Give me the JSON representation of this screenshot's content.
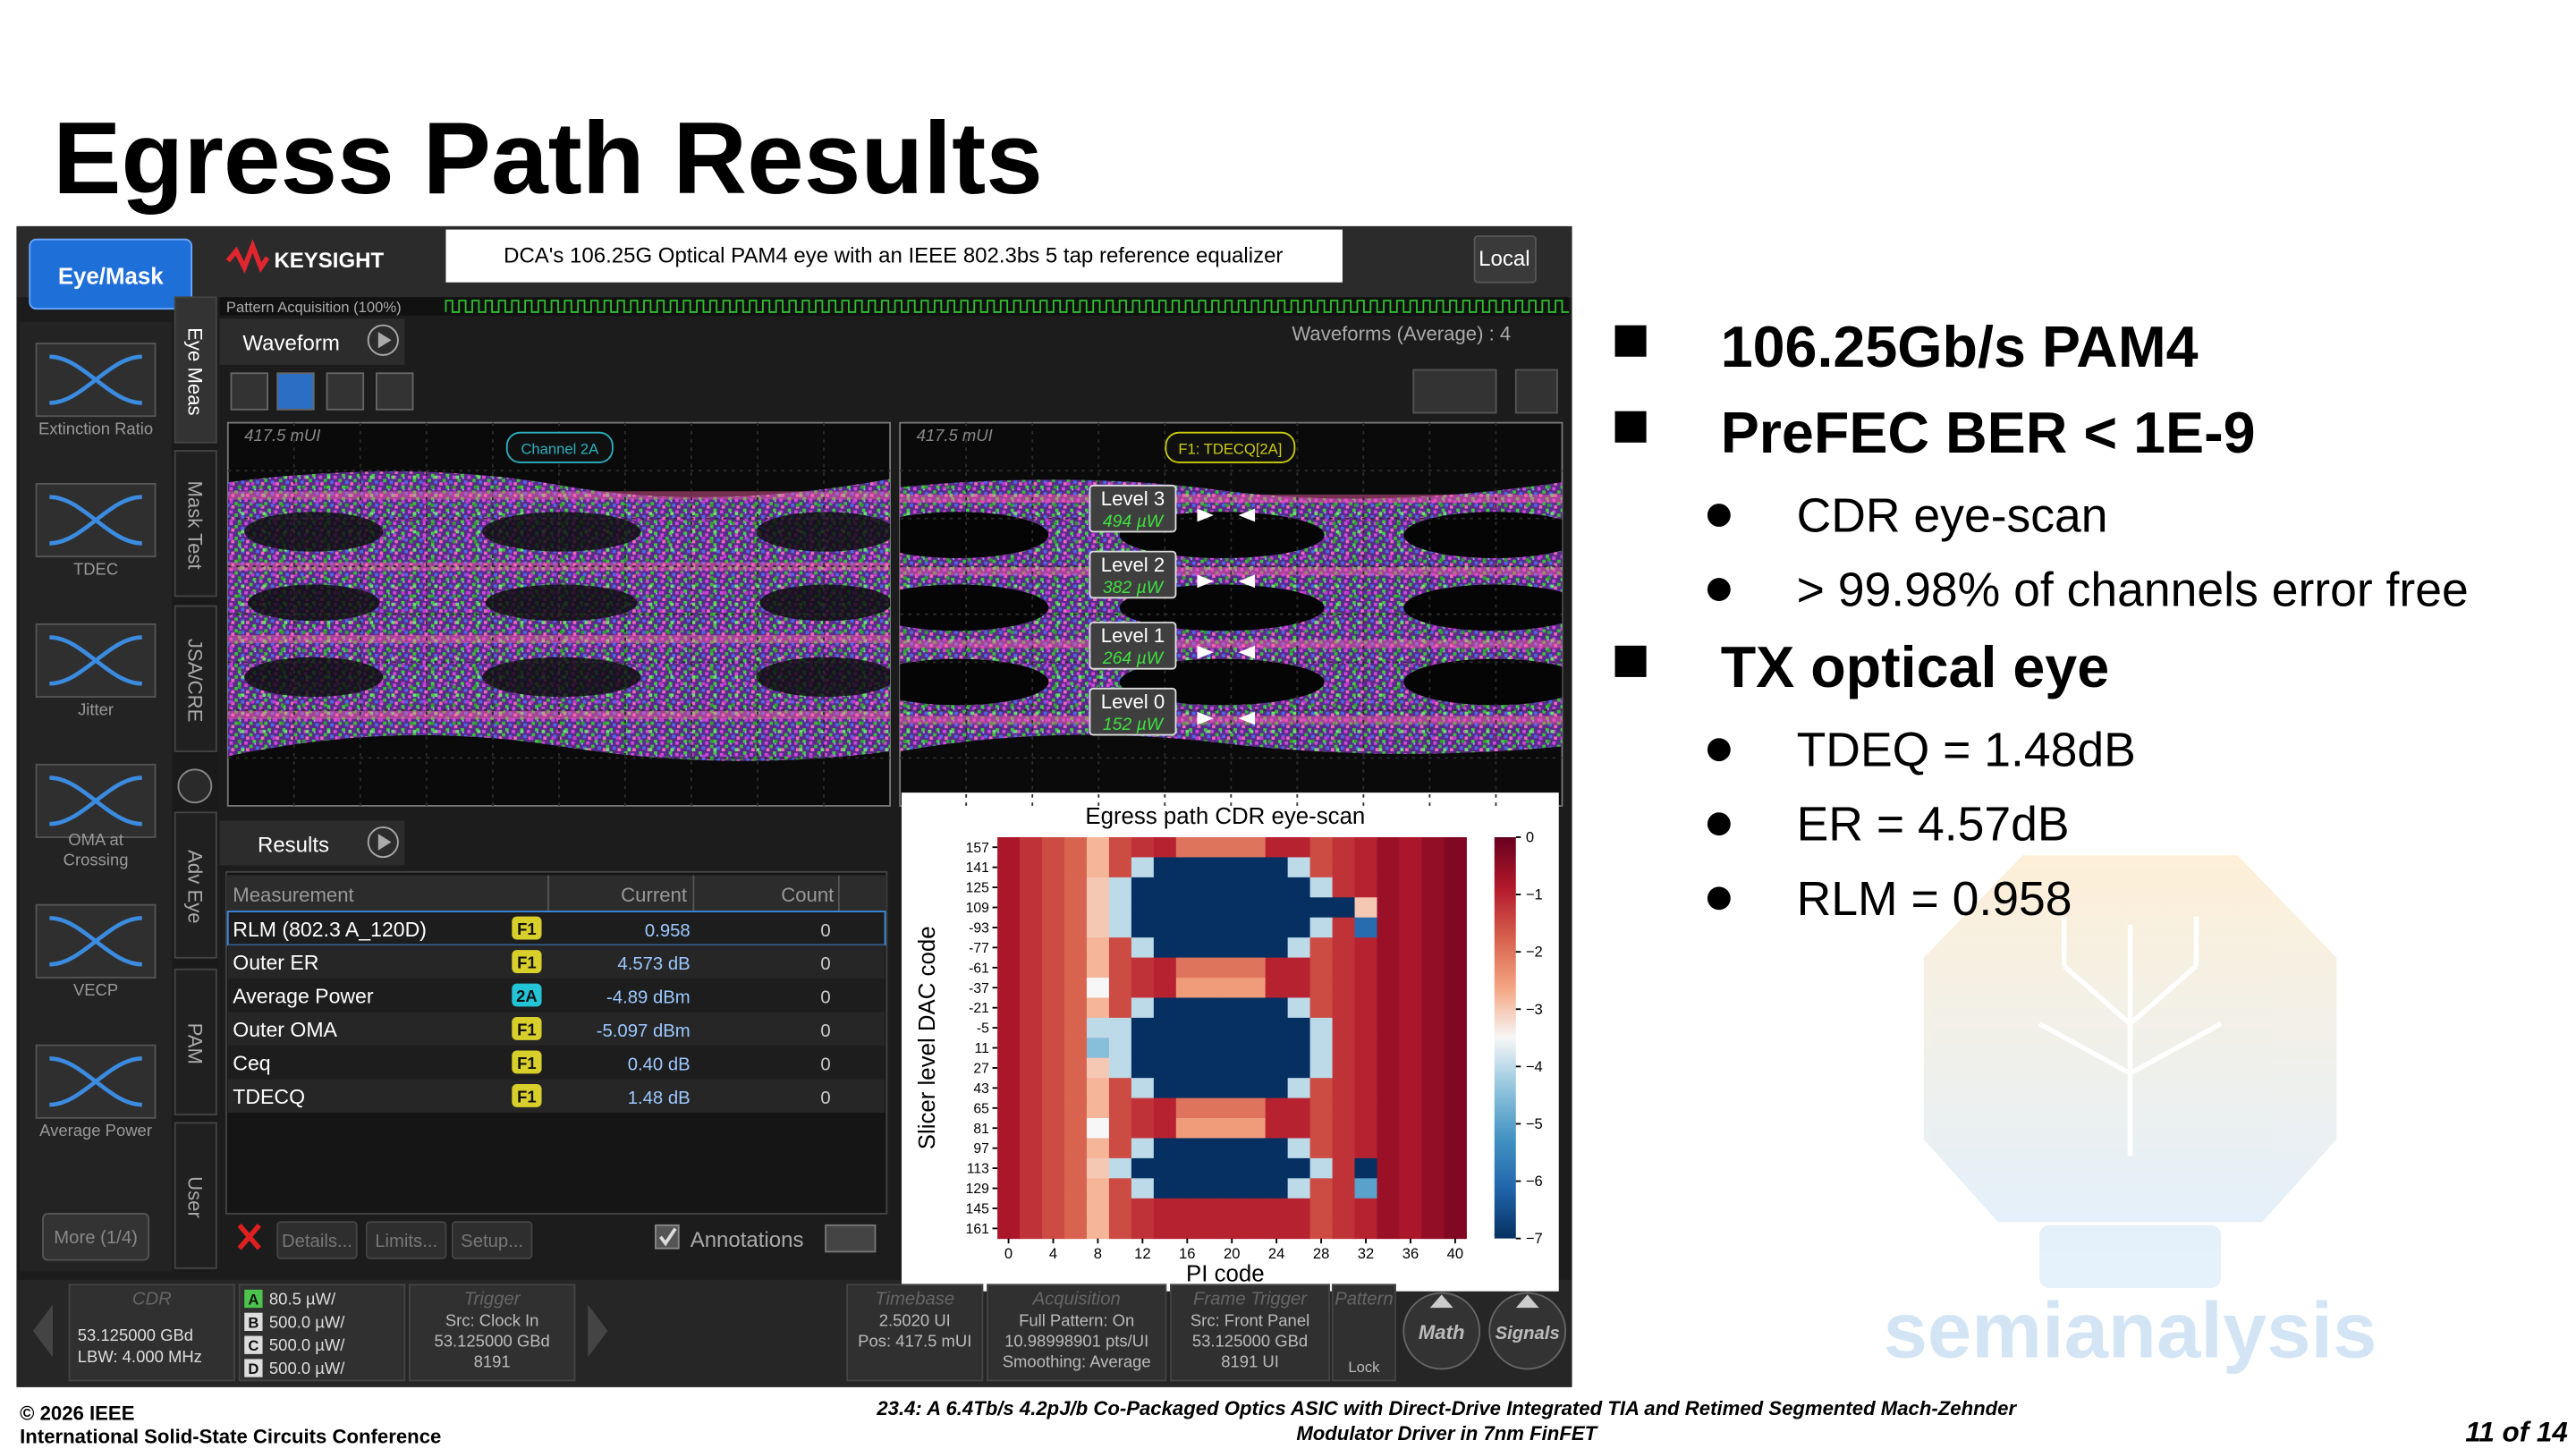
{
  "slide": {
    "title": "Egress Path Results",
    "bullets": [
      {
        "text": "106.25Gb/s PAM4"
      },
      {
        "text": "PreFEC BER < 1E-9",
        "sub": [
          "CDR eye-scan",
          "> 99.98% of channels error free"
        ]
      },
      {
        "text": "TX optical eye",
        "sub": [
          "TDEQ = 1.48dB",
          "ER = 4.57dB",
          "RLM = 0.958"
        ]
      }
    ],
    "footer": {
      "copyright": "© 2026 IEEE",
      "conference": "International Solid-State Circuits Conference",
      "paper": [
        "23.4: A 6.4Tb/s 4.2pJ/b Co-Packaged Optics ASIC with Direct-Drive Integrated TIA and Retimed Segmented Mach-Zehnder",
        "Modulator Driver in 7nm FinFET"
      ],
      "page": "11 of 14"
    },
    "watermark": "semianalysis"
  },
  "scope": {
    "mode_button": "Eye/Mask",
    "brand": "KEYSIGHT",
    "caption": "DCA's 106.25G Optical PAM4 eye with an IEEE 802.3bs 5 tap reference equalizer",
    "local": "Local",
    "pattern_acquisition": "Pattern Acquisition  (100%)",
    "waveform_tab": "Waveform",
    "waveform_status": "Waveforms (Average) : 4",
    "tools": [
      [
        "Extinction Ratio"
      ],
      [
        "TDEC"
      ],
      [
        "Jitter"
      ],
      [
        "OMA at",
        "Crossing"
      ],
      [
        "VECP"
      ],
      [
        "Average Power"
      ]
    ],
    "more": "More (1/4)",
    "tabs": [
      "Eye Meas",
      "Mask Test",
      "JSA/CRE",
      "Adv Eye",
      "PAM",
      "User"
    ],
    "eye_left": {
      "position": "417.5 mUI",
      "label": "Channel 2A"
    },
    "eye_right": {
      "position": "417.5 mUI",
      "label": "F1: TDECQ[2A]",
      "levels": [
        {
          "name": "Level 3",
          "power": "494 µW"
        },
        {
          "name": "Level 2",
          "power": "382 µW"
        },
        {
          "name": "Level 1",
          "power": "264 µW"
        },
        {
          "name": "Level 0",
          "power": "152 µW"
        }
      ]
    },
    "results": {
      "tab": "Results",
      "columns": [
        "Measurement",
        "Current",
        "Count"
      ],
      "rows": [
        {
          "name": "RLM (802.3 A_120D)",
          "source": "F1",
          "source_color": "#d9cf2a",
          "current": "0.958",
          "count": "0"
        },
        {
          "name": "Outer ER",
          "source": "F1",
          "source_color": "#d9cf2a",
          "current": "4.573 dB",
          "count": "0"
        },
        {
          "name": "Average Power",
          "source": "2A",
          "source_color": "#22c4d6",
          "current": "-4.89 dBm",
          "count": "0"
        },
        {
          "name": "Outer OMA",
          "source": "F1",
          "source_color": "#d9cf2a",
          "current": "-5.097 dBm",
          "count": "0"
        },
        {
          "name": "Ceq",
          "source": "F1",
          "source_color": "#d9cf2a",
          "current": "0.40 dB",
          "count": "0"
        },
        {
          "name": "TDECQ",
          "source": "F1",
          "source_color": "#d9cf2a",
          "current": "1.48 dB",
          "count": "0"
        }
      ]
    },
    "buttons": [
      "Details...",
      "Limits...",
      "Setup..."
    ],
    "annotations": "Annotations",
    "status": {
      "cdr": {
        "title": "CDR",
        "lines": [
          "53.125000 GBd",
          "LBW: 4.000 MHz"
        ]
      },
      "channels": [
        {
          "id": "A",
          "scale": "80.5 µW/",
          "color": "#4cc44c"
        },
        {
          "id": "B",
          "scale": "500.0 µW/",
          "color": "#dddddd"
        },
        {
          "id": "C",
          "scale": "500.0 µW/",
          "color": "#dddddd"
        },
        {
          "id": "D",
          "scale": "500.0 µW/",
          "color": "#dddddd"
        }
      ],
      "trigger": {
        "title": "Trigger",
        "lines": [
          "Src: Clock In",
          "53.125000 GBd",
          "8191"
        ]
      },
      "timebase": {
        "title": "Timebase",
        "lines": [
          "2.5020 UI",
          "Pos: 417.5 mUI"
        ]
      },
      "acquisition": {
        "title": "Acquisition",
        "lines": [
          "Full Pattern: On",
          "10.98998901 pts/UI",
          "Smoothing: Average"
        ]
      },
      "frame_trigger": {
        "title": "Frame Trigger",
        "lines": [
          "Src: Front Panel",
          "53.125000 GBd",
          "8191 UI"
        ]
      },
      "pattern": {
        "title": "Pattern",
        "lines": [
          "Lock"
        ]
      },
      "math": "Math",
      "signals": "Signals"
    }
  },
  "chart_data": {
    "type": "heatmap",
    "title": "Egress path CDR eye-scan",
    "x_label": "PI code",
    "y_label": "Slicer level DAC code",
    "x": [
      0,
      2,
      4,
      6,
      8,
      10,
      12,
      14,
      16,
      18,
      20,
      22,
      24,
      26,
      28,
      30,
      32,
      34,
      36,
      38,
      40
    ],
    "xlim": [
      -1,
      41
    ],
    "xticks": [
      0,
      4,
      8,
      12,
      16,
      20,
      24,
      28,
      32,
      36,
      40
    ],
    "categories": [
      "157",
      "141",
      "125",
      "109",
      "-93",
      "-77",
      "-61",
      "-37",
      "-21",
      "-5",
      "11",
      "27",
      "43",
      "65",
      "81",
      "97",
      "113",
      "129",
      "145",
      "161"
    ],
    "values": [
      [
        -0.8,
        -1.2,
        -1.5,
        -1.8,
        -2.8,
        -1.5,
        -1.2,
        -1,
        -2,
        -2,
        -2,
        -2,
        -1,
        -1,
        -1.5,
        -1.2,
        -1,
        -0.6,
        -0.8,
        -0.5,
        -0.3
      ],
      [
        -0.8,
        -1.2,
        -1.5,
        -1.8,
        -2.8,
        -1.5,
        -4,
        -7,
        -7,
        -7,
        -7,
        -7,
        -7,
        -4,
        -1.5,
        -1.2,
        -1,
        -0.6,
        -0.8,
        -0.5,
        -0.3
      ],
      [
        -0.8,
        -1.2,
        -1.5,
        -1.8,
        -3,
        -4,
        -7,
        -7,
        -7,
        -7,
        -7,
        -7,
        -7,
        -7,
        -4,
        -1.2,
        -1,
        -0.6,
        -0.8,
        -0.5,
        -0.3
      ],
      [
        -0.8,
        -1.2,
        -1.5,
        -1.8,
        -3,
        -4,
        -7,
        -7,
        -7,
        -7,
        -7,
        -7,
        -7,
        -7,
        -7,
        -7,
        -3,
        -0.6,
        -0.8,
        -0.5,
        -0.3
      ],
      [
        -0.8,
        -1.2,
        -1.5,
        -1.8,
        -3,
        -4,
        -7,
        -7,
        -7,
        -7,
        -7,
        -7,
        -7,
        -7,
        -4,
        -1.2,
        -6,
        -0.6,
        -0.8,
        -0.5,
        -0.3
      ],
      [
        -0.8,
        -1.2,
        -1.5,
        -1.8,
        -2.8,
        -1.5,
        -4,
        -7,
        -7,
        -7,
        -7,
        -7,
        -7,
        -4,
        -1.5,
        -1.2,
        -1,
        -0.6,
        -0.8,
        -0.5,
        -0.3
      ],
      [
        -0.8,
        -1.2,
        -1.5,
        -1.8,
        -2.8,
        -1.5,
        -1.2,
        -1,
        -2,
        -2,
        -2,
        -2,
        -1,
        -1,
        -1.5,
        -1.2,
        -1,
        -0.6,
        -0.8,
        -0.5,
        -0.3
      ],
      [
        -0.8,
        -1.2,
        -1.5,
        -1.8,
        -3.5,
        -1.5,
        -1.2,
        -1,
        -2.5,
        -2.5,
        -2.5,
        -2.5,
        -1,
        -1,
        -1.5,
        -1.2,
        -1,
        -0.6,
        -0.8,
        -0.5,
        -0.3
      ],
      [
        -0.8,
        -1.2,
        -1.5,
        -1.8,
        -2.8,
        -1.5,
        -4,
        -7,
        -7,
        -7,
        -7,
        -7,
        -7,
        -4,
        -1.5,
        -1.2,
        -1,
        -0.6,
        -0.8,
        -0.5,
        -0.3
      ],
      [
        -0.8,
        -1.2,
        -1.5,
        -1.8,
        -4,
        -4,
        -7,
        -7,
        -7,
        -7,
        -7,
        -7,
        -7,
        -7,
        -4,
        -1.2,
        -1,
        -0.6,
        -0.8,
        -0.5,
        -0.3
      ],
      [
        -0.8,
        -1.2,
        -1.5,
        -1.8,
        -4.5,
        -4,
        -7,
        -7,
        -7,
        -7,
        -7,
        -7,
        -7,
        -7,
        -4,
        -1.2,
        -1,
        -0.6,
        -0.8,
        -0.5,
        -0.3
      ],
      [
        -0.8,
        -1.2,
        -1.5,
        -1.8,
        -3,
        -4,
        -7,
        -7,
        -7,
        -7,
        -7,
        -7,
        -7,
        -7,
        -4,
        -1.2,
        -1,
        -0.6,
        -0.8,
        -0.5,
        -0.3
      ],
      [
        -0.8,
        -1.2,
        -1.5,
        -1.8,
        -2.8,
        -1.5,
        -4,
        -7,
        -7,
        -7,
        -7,
        -7,
        -7,
        -4,
        -1.5,
        -1.2,
        -1,
        -0.6,
        -0.8,
        -0.5,
        -0.3
      ],
      [
        -0.8,
        -1.2,
        -1.5,
        -1.8,
        -2.8,
        -1.5,
        -1.2,
        -1,
        -2,
        -2,
        -2,
        -2,
        -1,
        -1,
        -1.5,
        -1.2,
        -1,
        -0.6,
        -0.8,
        -0.5,
        -0.3
      ],
      [
        -0.8,
        -1.2,
        -1.5,
        -1.8,
        -3.5,
        -1.5,
        -1.2,
        -1,
        -2.5,
        -2.5,
        -2.5,
        -2.5,
        -1,
        -1,
        -1.5,
        -1.2,
        -1,
        -0.6,
        -0.8,
        -0.5,
        -0.3
      ],
      [
        -0.8,
        -1.2,
        -1.5,
        -1.8,
        -2.8,
        -1.5,
        -4,
        -7,
        -7,
        -7,
        -7,
        -7,
        -7,
        -4,
        -1.5,
        -1.2,
        -1,
        -0.6,
        -0.8,
        -0.5,
        -0.3
      ],
      [
        -0.8,
        -1.2,
        -1.5,
        -1.8,
        -3,
        -4,
        -7,
        -7,
        -7,
        -7,
        -7,
        -7,
        -7,
        -7,
        -4,
        -1.2,
        -7,
        -0.6,
        -0.8,
        -0.5,
        -0.3
      ],
      [
        -0.8,
        -1.2,
        -1.5,
        -1.8,
        -2.8,
        -1.5,
        -4,
        -7,
        -7,
        -7,
        -7,
        -7,
        -7,
        -4,
        -1.5,
        -1.2,
        -5,
        -0.6,
        -0.8,
        -0.5,
        -0.3
      ],
      [
        -0.8,
        -1.2,
        -1.5,
        -1.8,
        -2.8,
        -1.5,
        -1.2,
        -1,
        -1,
        -1,
        -1,
        -1,
        -1,
        -1,
        -1.5,
        -1.2,
        -1,
        -0.6,
        -0.8,
        -0.5,
        -0.3
      ],
      [
        -0.8,
        -1.2,
        -1.5,
        -1.8,
        -2.8,
        -1.5,
        -1.2,
        -1,
        -1,
        -1,
        -1,
        -1,
        -1,
        -1,
        -1.5,
        -1.2,
        -1,
        -0.6,
        -0.8,
        -0.5,
        -0.3
      ]
    ],
    "clim": [
      -7,
      0
    ],
    "colorbar_ticks": [
      0,
      {
        "value": -1,
        "label": "−1"
      },
      {
        "value": -2,
        "label": "−2"
      },
      {
        "value": -3,
        "label": "−3"
      },
      {
        "value": -4,
        "label": "−4"
      },
      {
        "value": -5,
        "label": "−5"
      },
      {
        "value": -6,
        "label": "−6"
      },
      {
        "value": -7,
        "label": "−7"
      }
    ],
    "colors": [
      "#053061",
      "#2166ac",
      "#4393c3",
      "#92c5de",
      "#f7f7f7",
      "#f4a582",
      "#d6604d",
      "#b2182b",
      "#67001f"
    ]
  }
}
